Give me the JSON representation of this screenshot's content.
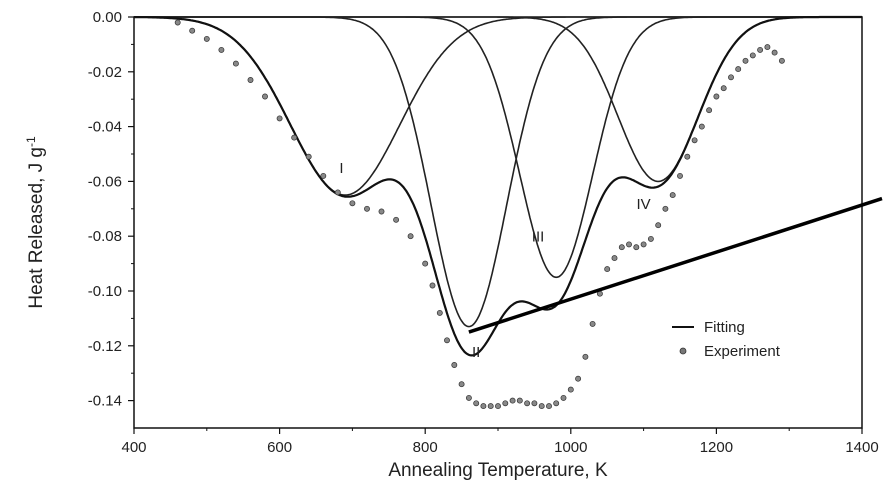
{
  "chart_data": {
    "type": "line",
    "xlabel": "Annealing Temperature, K",
    "ylabel_main": "Heat  Released, J g",
    "ylabel_sup": "-1",
    "xlim": [
      400,
      1400
    ],
    "ylim": [
      -0.15,
      0.0
    ],
    "xticks": [
      "400",
      "600",
      "800",
      "1000",
      "1200",
      "1400"
    ],
    "yticks": [
      "0.00",
      "-0.02",
      "-0.04",
      "-0.06",
      "-0.08",
      "-0.10",
      "-0.12",
      "-0.14"
    ],
    "grid": false,
    "legend_position": "right",
    "legend": [
      {
        "label": "Fitting",
        "marker": "line"
      },
      {
        "label": "Experiment",
        "marker": "circle"
      }
    ],
    "peaks": [
      {
        "label": "I",
        "center": 690,
        "amplitude": -0.065,
        "sigma": 75,
        "label_x": 685,
        "label_y": -0.057
      },
      {
        "label": "II",
        "center": 860,
        "amplitude": -0.113,
        "sigma": 52,
        "label_x": 870,
        "label_y": -0.124
      },
      {
        "label": "III",
        "center": 980,
        "amplitude": -0.095,
        "sigma": 50,
        "label_x": 955,
        "label_y": -0.082
      },
      {
        "label": "IV",
        "center": 1120,
        "amplitude": -0.06,
        "sigma": 55,
        "label_x": 1100,
        "label_y": -0.07
      }
    ],
    "annotation_line": {
      "x1": 860,
      "y1": -0.115,
      "x2": 1400,
      "y2": -0.067
    },
    "experiment": {
      "x": [
        460,
        480,
        500,
        520,
        540,
        560,
        580,
        600,
        620,
        640,
        660,
        680,
        700,
        720,
        740,
        760,
        780,
        800,
        810,
        820,
        830,
        840,
        850,
        860,
        870,
        880,
        890,
        900,
        910,
        920,
        930,
        940,
        950,
        960,
        970,
        980,
        990,
        1000,
        1010,
        1020,
        1030,
        1040,
        1050,
        1060,
        1070,
        1080,
        1090,
        1100,
        1110,
        1120,
        1130,
        1140,
        1150,
        1160,
        1170,
        1180,
        1190,
        1200,
        1210,
        1220,
        1230,
        1240,
        1250,
        1260,
        1270,
        1280,
        1290
      ],
      "y": [
        -0.002,
        -0.005,
        -0.008,
        -0.012,
        -0.017,
        -0.023,
        -0.029,
        -0.037,
        -0.044,
        -0.051,
        -0.058,
        -0.064,
        -0.068,
        -0.07,
        -0.071,
        -0.074,
        -0.08,
        -0.09,
        -0.098,
        -0.108,
        -0.118,
        -0.127,
        -0.134,
        -0.139,
        -0.141,
        -0.142,
        -0.142,
        -0.142,
        -0.141,
        -0.14,
        -0.14,
        -0.141,
        -0.141,
        -0.142,
        -0.142,
        -0.141,
        -0.139,
        -0.136,
        -0.132,
        -0.124,
        -0.112,
        -0.101,
        -0.092,
        -0.088,
        -0.084,
        -0.083,
        -0.084,
        -0.083,
        -0.081,
        -0.076,
        -0.07,
        -0.065,
        -0.058,
        -0.051,
        -0.045,
        -0.04,
        -0.034,
        -0.029,
        -0.026,
        -0.022,
        -0.019,
        -0.016,
        -0.014,
        -0.012,
        -0.011,
        -0.013,
        -0.016
      ]
    }
  }
}
